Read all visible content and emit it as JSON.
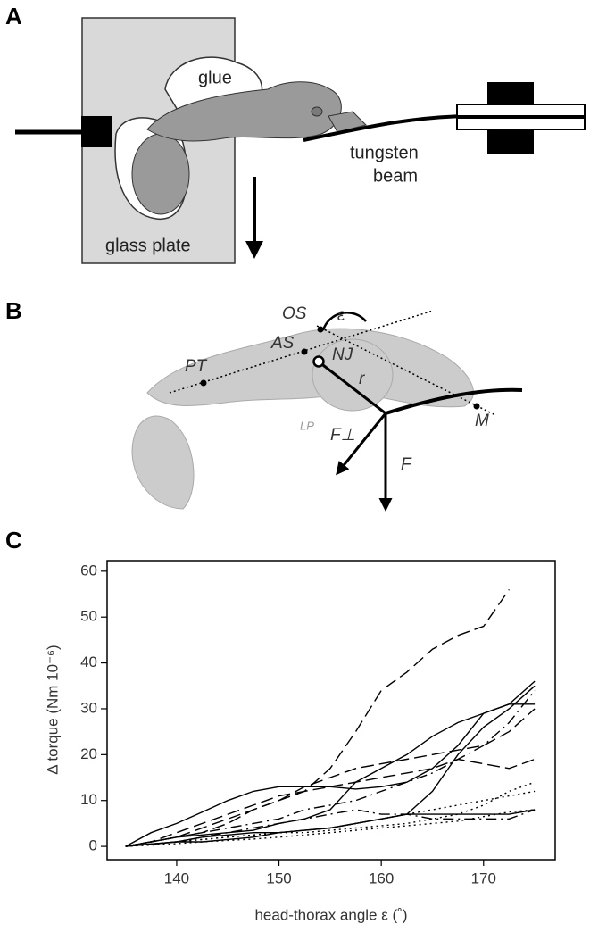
{
  "panels": {
    "a": {
      "label": "A",
      "glue": "glue",
      "beam": [
        "tungsten",
        "beam"
      ],
      "plate": "glass plate"
    },
    "b": {
      "label": "B",
      "os": "OS",
      "epsilon": "ε",
      "as": "AS",
      "nj": "NJ",
      "pt": "PT",
      "r": "r",
      "lp": "LP",
      "f_perp": "F⊥",
      "f": "F",
      "m": "M"
    },
    "c": {
      "label": "C"
    }
  },
  "chart_data": {
    "type": "line",
    "x_label": "head-thorax angle ε (˚)",
    "y_label": "Δ torque (Nm 10⁻⁶)",
    "xlim": [
      133.2,
      177
    ],
    "ylim": [
      -2.9,
      62.3
    ],
    "xticks": [
      140,
      150,
      160,
      170
    ],
    "yticks": [
      0,
      10,
      20,
      30,
      40,
      50,
      60
    ],
    "x": [
      135,
      137.5,
      140,
      142.5,
      145,
      147.5,
      150,
      152.5,
      155,
      157.5,
      160,
      162.5,
      165,
      167.5,
      170,
      172.5,
      175
    ],
    "series": [
      {
        "color": "#000000",
        "dash": "solid",
        "values": [
          0,
          3,
          5,
          7.5,
          10,
          12,
          13,
          13,
          13,
          12.5,
          13,
          14,
          17,
          22,
          29,
          31,
          31
        ]
      },
      {
        "color": "#000000",
        "dash": "solid",
        "values": [
          0,
          1,
          2,
          2.5,
          3,
          3.5,
          5,
          6,
          8,
          14,
          17,
          20,
          24,
          27,
          29,
          31,
          36
        ]
      },
      {
        "color": "#000000",
        "dash": "solid",
        "values": [
          0,
          0.5,
          1,
          1,
          1.5,
          2,
          3,
          3.5,
          4,
          5,
          6,
          7,
          12,
          20,
          26,
          30,
          35
        ]
      },
      {
        "color": "#000000",
        "dash": "solid",
        "values": [
          0,
          0.5,
          1,
          2,
          2.5,
          3,
          3,
          3.5,
          4,
          5,
          6,
          7,
          7,
          7,
          7,
          7,
          8
        ]
      },
      {
        "color": "#000000",
        "dash": "dashed",
        "values": [
          0,
          1,
          2,
          3,
          5,
          8,
          10,
          12,
          17,
          25,
          34,
          38,
          43,
          46,
          48,
          56,
          null
        ]
      },
      {
        "color": "#000000",
        "dash": "dashed",
        "values": [
          0,
          1,
          3,
          5,
          7,
          9,
          11,
          12,
          13,
          14,
          15,
          16,
          17,
          19,
          18,
          17,
          19
        ]
      },
      {
        "color": "#000000",
        "dash": "dashed",
        "values": [
          0,
          1,
          2,
          4,
          6,
          8,
          10,
          13,
          15,
          17,
          18,
          19,
          20,
          21,
          22,
          25,
          30
        ]
      },
      {
        "color": "#000000",
        "dash": "dashdot",
        "values": [
          0,
          1,
          2,
          3,
          4,
          5,
          6,
          8,
          9,
          10,
          12,
          14,
          16,
          19,
          22,
          27,
          34
        ]
      },
      {
        "color": "#000000",
        "dash": "dashdot",
        "values": [
          0,
          0.5,
          1,
          2,
          3,
          4,
          5,
          6,
          7,
          8,
          7,
          7,
          6,
          6,
          6,
          6,
          8
        ]
      },
      {
        "color": "#000000",
        "dash": "dotted",
        "values": [
          0,
          0.5,
          1,
          1.5,
          2,
          2.5,
          3,
          3,
          3.5,
          4,
          4.5,
          5,
          6,
          7,
          9,
          12,
          14
        ]
      },
      {
        "color": "#000000",
        "dash": "dotted",
        "values": [
          0,
          0.3,
          0.6,
          1,
          1.3,
          1.6,
          2,
          2.5,
          3,
          3.5,
          4,
          4.5,
          5,
          5.5,
          6.5,
          7.5,
          8
        ]
      },
      {
        "color": "#000000",
        "dash": "dotted",
        "values": [
          0,
          0.5,
          1,
          1.5,
          2,
          2.5,
          3,
          3.5,
          4,
          5,
          6,
          7,
          8,
          9,
          10,
          11,
          12
        ]
      }
    ]
  }
}
